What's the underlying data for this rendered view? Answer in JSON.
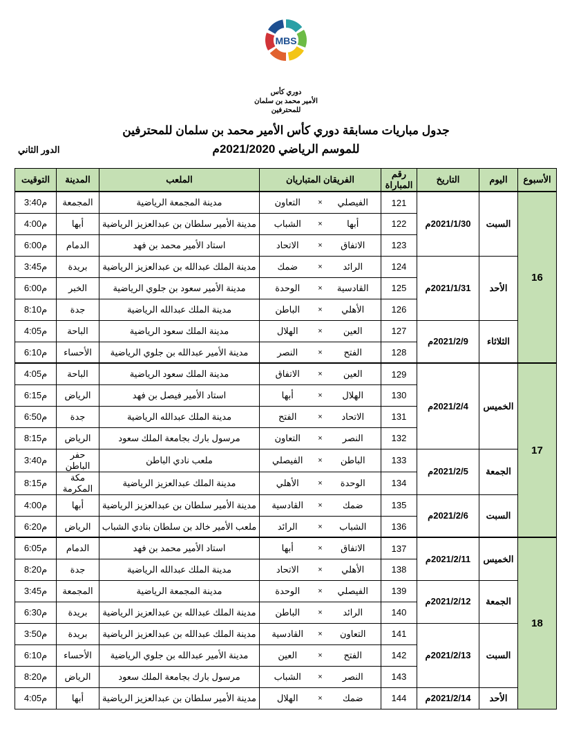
{
  "logo_text": {
    "line1": "دوري كأس",
    "line2": "الأمير محمد بن سلمان",
    "line3": "للمحترفين",
    "mbs": "MBS"
  },
  "logo_colors": [
    "#2aa0a6",
    "#6cbb45",
    "#f3c515",
    "#e1622f",
    "#d13438",
    "#1d4f91"
  ],
  "title_line1": "جدول مباريات مسابقة دوري كأس الأمير محمد بن سلمان للمحترفين",
  "title_line2": "للموسم الرياضي 2021/2020م",
  "round_label": "الدور الثاني",
  "header_bg": "#c5e0b4",
  "columns": [
    "الأسبوع",
    "اليوم",
    "التاريخ",
    "رقم المباراة",
    "الفريقان المتباريان",
    "الملعب",
    "المدينة",
    "التوقيت"
  ],
  "weeks": [
    {
      "week": "16",
      "groups": [
        {
          "day": "السبت",
          "date": "2021/1/30م",
          "matches": [
            {
              "num": "121",
              "home": "الفيصلي",
              "away": "التعاون",
              "venue": "مدينة المجمعة الرياضية",
              "city": "المجمعة",
              "time": "3:40م"
            },
            {
              "num": "122",
              "home": "أبها",
              "away": "الشباب",
              "venue": "مدينة الأمير سلطان بن عبدالعزيز الرياضية",
              "city": "أبها",
              "time": "4:00م"
            },
            {
              "num": "123",
              "home": "الاتفاق",
              "away": "الاتحاد",
              "venue": "استاد الأمير محمد بن فهد",
              "city": "الدمام",
              "time": "6:00م"
            }
          ]
        },
        {
          "day": "الأحد",
          "date": "2021/1/31م",
          "matches": [
            {
              "num": "124",
              "home": "الرائد",
              "away": "ضمك",
              "venue": "مدينة الملك عبدالله بن عبدالعزيز الرياضية",
              "city": "بريدة",
              "time": "3:45م"
            },
            {
              "num": "125",
              "home": "القادسية",
              "away": "الوحدة",
              "venue": "مدينة الأمير سعود بن جلوي الرياضية",
              "city": "الخبر",
              "time": "6:00م"
            },
            {
              "num": "126",
              "home": "الأهلي",
              "away": "الباطن",
              "venue": "مدينة الملك عبدالله الرياضية",
              "city": "جدة",
              "time": "8:10م"
            }
          ]
        },
        {
          "day": "الثلاثاء",
          "date": "2021/2/9م",
          "matches": [
            {
              "num": "127",
              "home": "العين",
              "away": "الهلال",
              "venue": "مدينة الملك سعود الرياضية",
              "city": "الباحة",
              "time": "4:05م"
            },
            {
              "num": "128",
              "home": "الفتح",
              "away": "النصر",
              "venue": "مدينة الأمير عبدالله بن جلوي الرياضية",
              "city": "الأحساء",
              "time": "6:10م"
            }
          ]
        }
      ]
    },
    {
      "week": "17",
      "groups": [
        {
          "day": "الخميس",
          "date": "2021/2/4م",
          "matches": [
            {
              "num": "129",
              "home": "العين",
              "away": "الاتفاق",
              "venue": "مدينة الملك سعود الرياضية",
              "city": "الباحة",
              "time": "4:05م"
            },
            {
              "num": "130",
              "home": "الهلال",
              "away": "أبها",
              "venue": "استاد الأمير فيصل بن فهد",
              "city": "الرياض",
              "time": "6:15م"
            },
            {
              "num": "131",
              "home": "الاتحاد",
              "away": "الفتح",
              "venue": "مدينة الملك عبدالله الرياضية",
              "city": "جدة",
              "time": "6:50م"
            },
            {
              "num": "132",
              "home": "النصر",
              "away": "التعاون",
              "venue": "مرسول بارك بجامعة الملك سعود",
              "city": "الرياض",
              "time": "8:15م"
            }
          ]
        },
        {
          "day": "الجمعة",
          "date": "2021/2/5م",
          "matches": [
            {
              "num": "133",
              "home": "الباطن",
              "away": "الفيصلي",
              "venue": "ملعب نادي الباطن",
              "city": "حفر الباطن",
              "time": "3:40م"
            },
            {
              "num": "134",
              "home": "الوحدة",
              "away": "الأهلي",
              "venue": "مدينة الملك عبدالعزيز الرياضية",
              "city": "مكة المكرمة",
              "time": "8:15م"
            }
          ]
        },
        {
          "day": "السبت",
          "date": "2021/2/6م",
          "matches": [
            {
              "num": "135",
              "home": "ضمك",
              "away": "القادسية",
              "venue": "مدينة الأمير سلطان بن عبدالعزيز الرياضية",
              "city": "أبها",
              "time": "4:00م"
            },
            {
              "num": "136",
              "home": "الشباب",
              "away": "الرائد",
              "venue": "ملعب الأمير خالد بن سلطان بنادي الشباب",
              "city": "الرياض",
              "time": "6:20م"
            }
          ]
        }
      ]
    },
    {
      "week": "18",
      "groups": [
        {
          "day": "الخميس",
          "date": "2021/2/11م",
          "matches": [
            {
              "num": "137",
              "home": "الاتفاق",
              "away": "أبها",
              "venue": "استاد الأمير محمد بن فهد",
              "city": "الدمام",
              "time": "6:05م"
            },
            {
              "num": "138",
              "home": "الأهلي",
              "away": "الاتحاد",
              "venue": "مدينة الملك عبدالله الرياضية",
              "city": "جدة",
              "time": "8:20م"
            }
          ]
        },
        {
          "day": "الجمعة",
          "date": "2021/2/12م",
          "matches": [
            {
              "num": "139",
              "home": "الفيصلي",
              "away": "الوحدة",
              "venue": "مدينة المجمعة الرياضية",
              "city": "المجمعة",
              "time": "3:45م"
            },
            {
              "num": "140",
              "home": "الرائد",
              "away": "الباطن",
              "venue": "مدينة الملك عبدالله بن عبدالعزيز الرياضية",
              "city": "بريدة",
              "time": "6:30م"
            }
          ]
        },
        {
          "day": "السبت",
          "date": "2021/2/13م",
          "matches": [
            {
              "num": "141",
              "home": "التعاون",
              "away": "القادسية",
              "venue": "مدينة الملك عبدالله بن عبدالعزيز الرياضية",
              "city": "بريدة",
              "time": "3:50م"
            },
            {
              "num": "142",
              "home": "الفتح",
              "away": "العين",
              "venue": "مدينة الأمير عبدالله بن جلوي الرياضية",
              "city": "الأحساء",
              "time": "6:10م"
            },
            {
              "num": "143",
              "home": "النصر",
              "away": "الشباب",
              "venue": "مرسول بارك بجامعة الملك سعود",
              "city": "الرياض",
              "time": "8:20م"
            }
          ]
        },
        {
          "day": "الأحد",
          "date": "2021/2/14م",
          "matches": [
            {
              "num": "144",
              "home": "ضمك",
              "away": "الهلال",
              "venue": "مدينة الأمير سلطان بن عبدالعزيز الرياضية",
              "city": "أبها",
              "time": "4:05م"
            }
          ]
        }
      ]
    }
  ]
}
